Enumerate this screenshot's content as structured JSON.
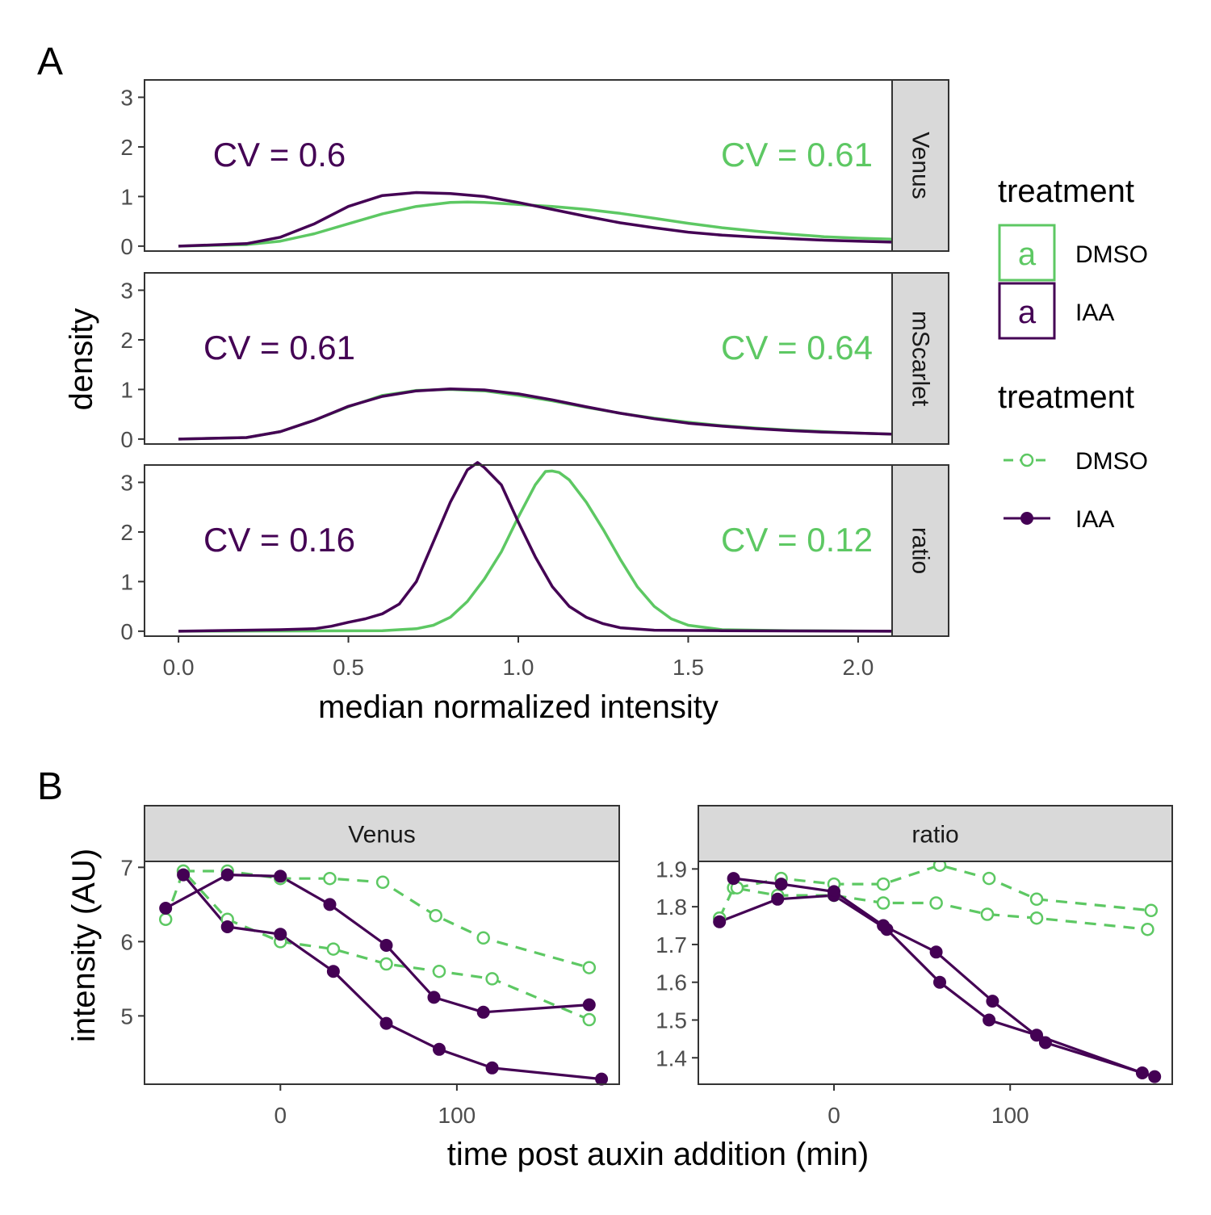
{
  "figure": {
    "panel_a_tag": "A",
    "panel_b_tag": "B"
  },
  "colors": {
    "DMSO": "#5dc863",
    "IAA": "#440154"
  },
  "legend": {
    "text_title": "treatment",
    "line_title": "treatment",
    "text_key_glyph": "a",
    "items": [
      {
        "label": "DMSO",
        "color": "#5dc863",
        "linetype": "dashed",
        "shape": "open-circle"
      },
      {
        "label": "IAA",
        "color": "#440154",
        "linetype": "solid",
        "shape": "filled-circle"
      }
    ]
  },
  "chart_data": [
    {
      "type": "line",
      "title": "",
      "panel": "A",
      "xlabel": "median normalized intensity",
      "ylabel": "density",
      "xlim": [
        -0.1,
        2.1
      ],
      "ylim": [
        -0.1,
        3.35
      ],
      "xticks": [
        "0.0",
        "0.5",
        "1.0",
        "1.5",
        "2.0"
      ],
      "yticks": [
        "0",
        "1",
        "2",
        "3"
      ],
      "facets": [
        {
          "strip": "Venus",
          "annotations": [
            {
              "text": "CV = 0.6",
              "series": "IAA",
              "position": "left"
            },
            {
              "text": "CV = 0.61",
              "series": "DMSO",
              "position": "right"
            }
          ],
          "series": [
            {
              "name": "DMSO",
              "x": [
                0,
                0.2,
                0.3,
                0.4,
                0.5,
                0.6,
                0.7,
                0.8,
                0.85,
                0.9,
                1.0,
                1.1,
                1.2,
                1.3,
                1.4,
                1.5,
                1.6,
                1.7,
                1.8,
                1.9,
                2.0,
                2.1
              ],
              "y": [
                0,
                0.03,
                0.1,
                0.25,
                0.45,
                0.65,
                0.8,
                0.88,
                0.89,
                0.88,
                0.84,
                0.8,
                0.74,
                0.66,
                0.56,
                0.46,
                0.37,
                0.3,
                0.24,
                0.19,
                0.16,
                0.14
              ]
            },
            {
              "name": "IAA",
              "x": [
                0,
                0.2,
                0.3,
                0.4,
                0.5,
                0.6,
                0.7,
                0.8,
                0.9,
                1.0,
                1.1,
                1.2,
                1.3,
                1.4,
                1.5,
                1.6,
                1.7,
                1.8,
                1.9,
                2.0,
                2.1
              ],
              "y": [
                0,
                0.05,
                0.18,
                0.45,
                0.8,
                1.02,
                1.08,
                1.06,
                1.0,
                0.88,
                0.74,
                0.6,
                0.47,
                0.37,
                0.28,
                0.22,
                0.18,
                0.15,
                0.12,
                0.1,
                0.08
              ]
            }
          ]
        },
        {
          "strip": "mScarlet",
          "annotations": [
            {
              "text": "CV = 0.61",
              "series": "IAA",
              "position": "left"
            },
            {
              "text": "CV = 0.64",
              "series": "DMSO",
              "position": "right"
            }
          ],
          "series": [
            {
              "name": "DMSO",
              "x": [
                0,
                0.2,
                0.3,
                0.4,
                0.5,
                0.6,
                0.7,
                0.8,
                0.9,
                1.0,
                1.1,
                1.2,
                1.3,
                1.4,
                1.5,
                1.6,
                1.7,
                1.8,
                1.9,
                2.0,
                2.1
              ],
              "y": [
                0,
                0.03,
                0.15,
                0.38,
                0.65,
                0.88,
                0.98,
                1.0,
                0.97,
                0.88,
                0.77,
                0.64,
                0.52,
                0.42,
                0.34,
                0.27,
                0.22,
                0.18,
                0.15,
                0.12,
                0.1
              ]
            },
            {
              "name": "IAA",
              "x": [
                0,
                0.2,
                0.3,
                0.4,
                0.5,
                0.6,
                0.7,
                0.8,
                0.9,
                1.0,
                1.1,
                1.2,
                1.3,
                1.4,
                1.5,
                1.6,
                1.7,
                1.8,
                1.9,
                2.0,
                2.1
              ],
              "y": [
                0,
                0.03,
                0.15,
                0.38,
                0.66,
                0.86,
                0.97,
                1.01,
                0.99,
                0.91,
                0.79,
                0.65,
                0.52,
                0.41,
                0.32,
                0.26,
                0.21,
                0.17,
                0.14,
                0.12,
                0.1
              ]
            }
          ]
        },
        {
          "strip": "ratio",
          "annotations": [
            {
              "text": "CV = 0.16",
              "series": "IAA",
              "position": "left"
            },
            {
              "text": "CV = 0.12",
              "series": "DMSO",
              "position": "right"
            }
          ],
          "series": [
            {
              "name": "DMSO",
              "x": [
                0,
                0.6,
                0.7,
                0.75,
                0.8,
                0.85,
                0.9,
                0.95,
                1.0,
                1.05,
                1.08,
                1.1,
                1.12,
                1.15,
                1.2,
                1.25,
                1.3,
                1.35,
                1.4,
                1.45,
                1.5,
                1.6,
                1.8,
                2.1
              ],
              "y": [
                0,
                0.01,
                0.05,
                0.12,
                0.28,
                0.6,
                1.05,
                1.6,
                2.3,
                2.95,
                3.22,
                3.23,
                3.2,
                3.05,
                2.6,
                2.05,
                1.45,
                0.9,
                0.5,
                0.25,
                0.12,
                0.03,
                0.01,
                0
              ]
            },
            {
              "name": "IAA",
              "x": [
                0,
                0.2,
                0.3,
                0.4,
                0.45,
                0.5,
                0.55,
                0.6,
                0.65,
                0.7,
                0.75,
                0.8,
                0.85,
                0.88,
                0.9,
                0.95,
                1.0,
                1.05,
                1.1,
                1.15,
                1.2,
                1.25,
                1.3,
                1.4,
                1.6,
                2.1
              ],
              "y": [
                0,
                0.02,
                0.03,
                0.05,
                0.1,
                0.18,
                0.25,
                0.35,
                0.55,
                1.0,
                1.8,
                2.6,
                3.25,
                3.4,
                3.3,
                2.95,
                2.2,
                1.5,
                0.9,
                0.5,
                0.28,
                0.15,
                0.07,
                0.02,
                0.01,
                0
              ]
            }
          ]
        }
      ]
    },
    {
      "type": "line",
      "title": "",
      "panel": "B",
      "xlabel": "time post auxin addition (min)",
      "ylabel": "intensity (AU)",
      "xlim": [
        -77,
        192
      ],
      "xticks": [
        0,
        100
      ],
      "facets": [
        {
          "strip": "Venus",
          "ylim": [
            4.08,
            7.08
          ],
          "yticks": [
            5,
            6,
            7
          ],
          "series": [
            {
              "name": "DMSO",
              "group": 1,
              "x": [
                -65,
                -55,
                -30,
                0,
                30,
                60,
                90,
                120,
                175
              ],
              "y": [
                6.3,
                6.95,
                6.3,
                6.0,
                5.9,
                5.7,
                5.6,
                5.5,
                4.95
              ]
            },
            {
              "name": "DMSO",
              "group": 2,
              "x": [
                -55,
                -30,
                0,
                28,
                58,
                88,
                115,
                175
              ],
              "y": [
                6.95,
                6.95,
                6.85,
                6.85,
                6.8,
                6.35,
                6.05,
                5.65
              ]
            },
            {
              "name": "IAA",
              "group": 1,
              "x": [
                -65,
                -30,
                0,
                28,
                60,
                87,
                115,
                175
              ],
              "y": [
                6.45,
                6.9,
                6.88,
                6.5,
                5.95,
                5.25,
                5.05,
                5.15
              ]
            },
            {
              "name": "IAA",
              "group": 2,
              "x": [
                -55,
                -30,
                0,
                30,
                60,
                90,
                120,
                182
              ],
              "y": [
                6.9,
                6.2,
                6.1,
                5.6,
                4.9,
                4.55,
                4.3,
                4.15
              ]
            }
          ]
        },
        {
          "strip": "ratio",
          "ylim": [
            1.33,
            1.92
          ],
          "yticks": [
            1.4,
            1.5,
            1.6,
            1.7,
            1.8,
            1.9
          ],
          "series": [
            {
              "name": "DMSO",
              "group": 1,
              "x": [
                -65,
                -57,
                -32,
                0,
                28,
                58,
                87,
                115,
                178
              ],
              "y": [
                1.77,
                1.85,
                1.83,
                1.83,
                1.81,
                1.81,
                1.78,
                1.77,
                1.74
              ]
            },
            {
              "name": "DMSO",
              "group": 2,
              "x": [
                -55,
                -30,
                0,
                28,
                60,
                88,
                115,
                180
              ],
              "y": [
                1.85,
                1.875,
                1.86,
                1.86,
                1.91,
                1.875,
                1.82,
                1.79
              ]
            },
            {
              "name": "IAA",
              "group": 1,
              "x": [
                -65,
                -32,
                0,
                30,
                60,
                88,
                115,
                175
              ],
              "y": [
                1.76,
                1.82,
                1.83,
                1.74,
                1.6,
                1.5,
                1.46,
                1.36
              ]
            },
            {
              "name": "IAA",
              "group": 2,
              "x": [
                -57,
                -30,
                0,
                28,
                58,
                90,
                120,
                182
              ],
              "y": [
                1.875,
                1.86,
                1.84,
                1.75,
                1.68,
                1.55,
                1.44,
                1.35
              ]
            }
          ]
        }
      ]
    }
  ]
}
